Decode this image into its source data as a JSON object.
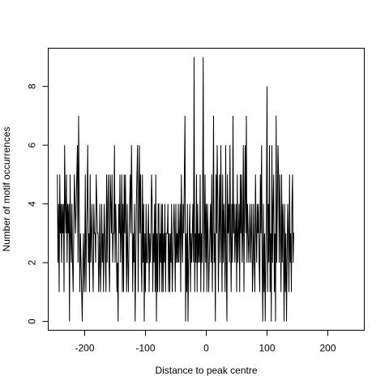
{
  "chart_data": {
    "type": "line",
    "title": "",
    "xlabel": "Distance to peak centre",
    "ylabel": "Number of motif occurrences",
    "xlim": [
      -260,
      260
    ],
    "ylim": [
      -0.3,
      9.3
    ],
    "x_ticks": [
      -200,
      -100,
      0,
      100,
      200
    ],
    "x_tick_labels": [
      "-200",
      "-100",
      "0",
      "100",
      "200"
    ],
    "y_ticks": [
      0,
      2,
      4,
      6,
      8
    ],
    "y_tick_labels": [
      "0",
      "2",
      "4",
      "6",
      "8"
    ],
    "grid": false,
    "x_start": -245,
    "x_step": 1,
    "series": [
      {
        "values": [
          5,
          2,
          4,
          1,
          5,
          3,
          4,
          2,
          4,
          3,
          4,
          1,
          6,
          4,
          3,
          5,
          2,
          4,
          3,
          4,
          0,
          5,
          3,
          2,
          4,
          2,
          1,
          3,
          5,
          4,
          3,
          4,
          5,
          6,
          2,
          7,
          4,
          1,
          3,
          2,
          1,
          0,
          2,
          3,
          1,
          2,
          5,
          1,
          3,
          4,
          6,
          2,
          3,
          1,
          5,
          2,
          3,
          4,
          2,
          1,
          4,
          3,
          3,
          2,
          5,
          4,
          3,
          3,
          1,
          2,
          4,
          1,
          2,
          4,
          2,
          3,
          1,
          4,
          3,
          2,
          1,
          5,
          2,
          4,
          5,
          2,
          1,
          5,
          4,
          3,
          5,
          2,
          3,
          3,
          6,
          2,
          4,
          3,
          1,
          2,
          0,
          4,
          3,
          5,
          2,
          3,
          5,
          1,
          4,
          1,
          5,
          3,
          5,
          3,
          1,
          4,
          2,
          1,
          3,
          4,
          5,
          3,
          6,
          4,
          1,
          3,
          2,
          4,
          0,
          2,
          4,
          5,
          6,
          1,
          4,
          6,
          3,
          5,
          2,
          1,
          5,
          2,
          4,
          0,
          3,
          1,
          4,
          2,
          2,
          3,
          4,
          1,
          3,
          2,
          3,
          5,
          4,
          1,
          3,
          2,
          4,
          1,
          5,
          0,
          3,
          1,
          4,
          4,
          1,
          3,
          2,
          4,
          1,
          4,
          1,
          3,
          2,
          4,
          1,
          3,
          3,
          3,
          4,
          1,
          3,
          1,
          3,
          2,
          4,
          1,
          2,
          3,
          4,
          3,
          1,
          4,
          2,
          3,
          2,
          4,
          2,
          3,
          4,
          1,
          5,
          3,
          2,
          4,
          3,
          5,
          7,
          0,
          3,
          1,
          4,
          0,
          2,
          3,
          4,
          1,
          3,
          2,
          3,
          4,
          2,
          9,
          1,
          3,
          2,
          5,
          1,
          4,
          2,
          3,
          2,
          5,
          1,
          3,
          2,
          4,
          9,
          1,
          3,
          5,
          2,
          4,
          1,
          4,
          3,
          1,
          2,
          3,
          4,
          2,
          5,
          1,
          3,
          7,
          2,
          3,
          0,
          5,
          3,
          6,
          4,
          1,
          3,
          5,
          2,
          6,
          3,
          1,
          5,
          2,
          4,
          3,
          1,
          6,
          2,
          0,
          5,
          3,
          4,
          2,
          6,
          3,
          1,
          4,
          2,
          7,
          3,
          4,
          2,
          3,
          4,
          1,
          5,
          2,
          3,
          4,
          1,
          5,
          3,
          5,
          2,
          3,
          6,
          1,
          4,
          6,
          3,
          7,
          2,
          4,
          3,
          2,
          3,
          4,
          2,
          3,
          4,
          1,
          2,
          4,
          2,
          1,
          5,
          3,
          2,
          4,
          3,
          4,
          2,
          1,
          5,
          3,
          6,
          2,
          0,
          4,
          1,
          3,
          0,
          2,
          4,
          8,
          1,
          4,
          2,
          6,
          1,
          3,
          0,
          6,
          2,
          4,
          5,
          1,
          3,
          0,
          7,
          2,
          4,
          6,
          5,
          2,
          5,
          3,
          1,
          5,
          2,
          4,
          3,
          0,
          4,
          1,
          3,
          0,
          2,
          4,
          3,
          1,
          5,
          2,
          3,
          1,
          4,
          5,
          2,
          3,
          3
        ]
      }
    ]
  }
}
